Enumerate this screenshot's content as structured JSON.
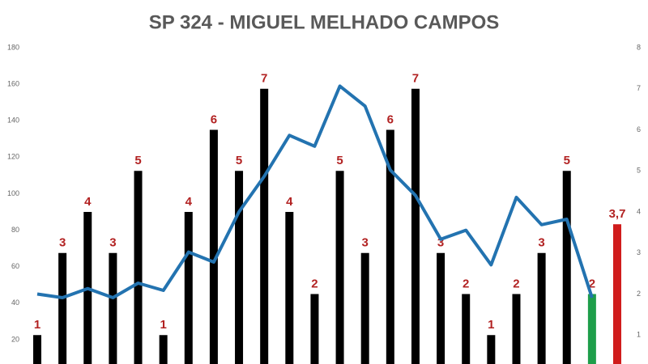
{
  "chart_data": {
    "type": "bar-line",
    "title": "SP 324 - MIGUEL MELHADO CAMPOS",
    "categories": [
      null,
      null,
      null,
      null,
      null,
      null,
      null,
      null,
      null,
      null,
      null,
      null,
      null,
      null,
      null,
      null,
      null,
      null,
      null,
      null,
      null,
      null,
      null,
      null
    ],
    "series": [
      {
        "type": "bar",
        "axis": "y2",
        "color": "#000000",
        "colors": [
          "#000000",
          "#000000",
          "#000000",
          "#000000",
          "#000000",
          "#000000",
          "#000000",
          "#000000",
          "#000000",
          "#000000",
          "#000000",
          "#000000",
          "#000000",
          "#000000",
          "#000000",
          "#000000",
          "#000000",
          "#000000",
          "#000000",
          "#000000",
          "#000000",
          "#000000",
          "#1e9e4a",
          "#d01c1c"
        ],
        "label_color": "#b22222",
        "values": [
          1,
          3,
          4,
          3,
          5,
          1,
          4,
          6,
          5,
          7,
          4,
          2,
          5,
          3,
          6,
          7,
          3,
          2,
          1,
          2,
          3,
          5,
          2,
          3.7
        ],
        "value_labels": [
          "1",
          "3",
          "4",
          "3",
          "5",
          "1",
          "4",
          "6",
          "5",
          "7",
          "4",
          "2",
          "5",
          "3",
          "6",
          "7",
          "3",
          "2",
          "1",
          "2",
          "3",
          "5",
          "2",
          "3,7"
        ]
      },
      {
        "type": "line",
        "axis": "y",
        "color": "#2373b0",
        "values": [
          45,
          43,
          48,
          43,
          51,
          47,
          68,
          62.5,
          90,
          109.5,
          132,
          126,
          159,
          148,
          113,
          99,
          75,
          80,
          61,
          98,
          83,
          86,
          43,
          null
        ]
      }
    ],
    "ylim": [
      0,
      180
    ],
    "yticks": [
      20,
      40,
      60,
      80,
      100,
      120,
      140,
      160,
      180
    ],
    "y2lim": [
      0,
      8
    ],
    "y2ticks": [
      1,
      2,
      3,
      4,
      5,
      6,
      7,
      8
    ],
    "grid": false
  }
}
